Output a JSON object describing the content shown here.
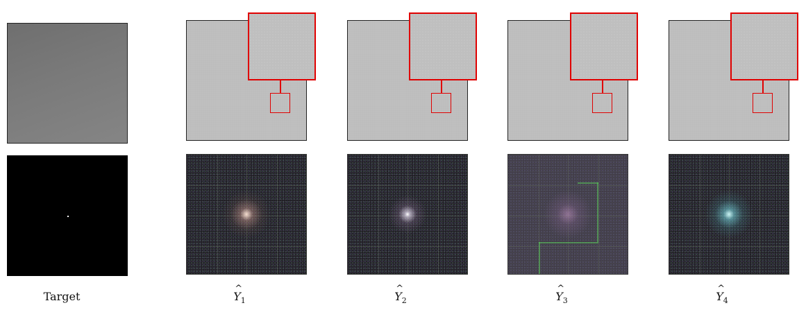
{
  "columns": [
    {
      "label_text": "Target"
    },
    {
      "symbol": "Y",
      "subscript": "1"
    },
    {
      "symbol": "Y",
      "subscript": "2"
    },
    {
      "symbol": "Y",
      "subscript": "3"
    },
    {
      "symbol": "Y",
      "subscript": "4"
    }
  ],
  "colors": {
    "roi_box": "#e00000",
    "recon_fill": "#bdbdbd",
    "target_fill": "#7a7a7a",
    "spectrum_bg": "#1a1c1d"
  }
}
